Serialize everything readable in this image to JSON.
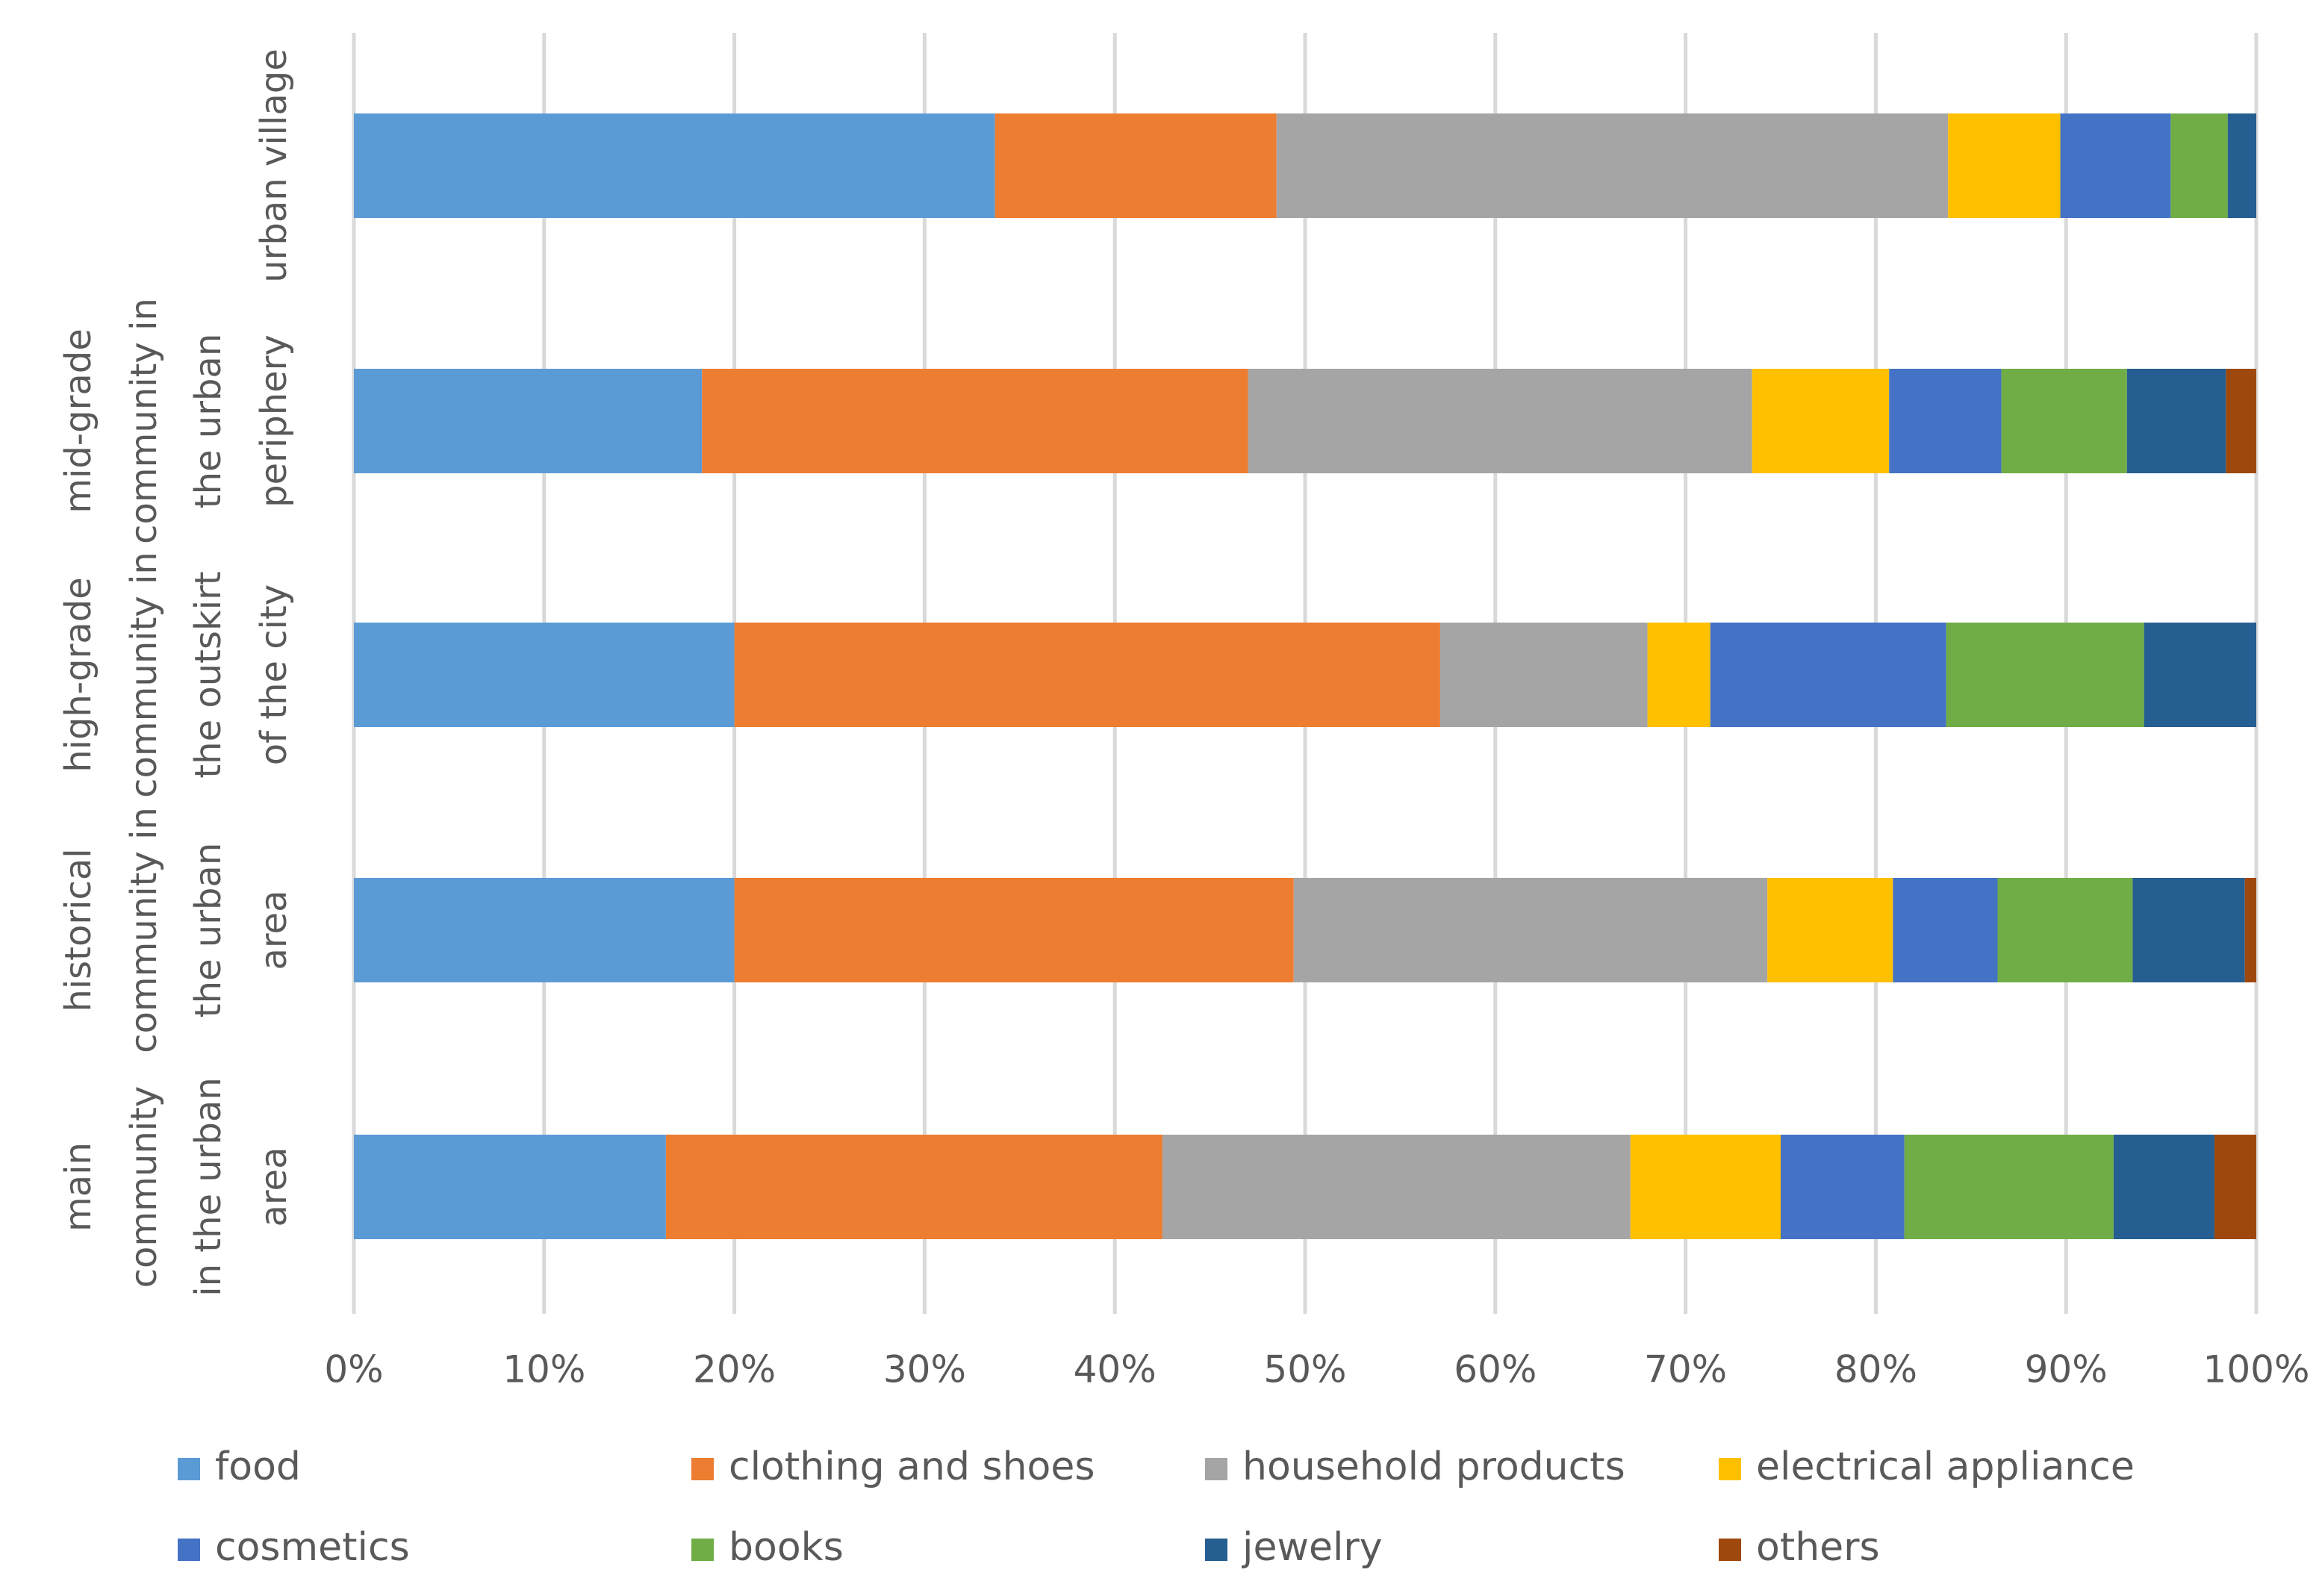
{
  "chart_data": {
    "type": "bar",
    "orientation": "horizontal",
    "stacked": "percent",
    "title": "",
    "xlabel": "",
    "ylabel": "",
    "xlim": [
      0,
      100
    ],
    "x_ticks": [
      "0%",
      "10%",
      "20%",
      "30%",
      "40%",
      "50%",
      "60%",
      "70%",
      "80%",
      "90%",
      "100%"
    ],
    "grid": true,
    "legend_position": "bottom",
    "categories": [
      {
        "id": "urban-village",
        "lines": [
          "urban village"
        ]
      },
      {
        "id": "mid-grade",
        "lines": [
          "mid-grade",
          "community in",
          "the urban",
          "periphery"
        ]
      },
      {
        "id": "high-grade",
        "lines": [
          "high-grade",
          "community in",
          "the outskirt",
          "of the city"
        ]
      },
      {
        "id": "historical",
        "lines": [
          "historical",
          "community in",
          "the urban",
          "area"
        ]
      },
      {
        "id": "main",
        "lines": [
          "main",
          "community",
          "in the urban",
          "area"
        ]
      }
    ],
    "series": [
      {
        "name": "food",
        "color": "#5B9BD5",
        "values": [
          33.7,
          18.3,
          20.0,
          20.0,
          16.4
        ]
      },
      {
        "name": "clothing and shoes",
        "color": "#ED7D31",
        "values": [
          14.8,
          28.7,
          37.1,
          29.4,
          26.1
        ]
      },
      {
        "name": "household products",
        "color": "#A5A5A5",
        "values": [
          35.3,
          26.5,
          10.9,
          24.9,
          24.6
        ]
      },
      {
        "name": "electrical appliance",
        "color": "#FFC000",
        "values": [
          5.9,
          7.2,
          3.3,
          6.6,
          7.9
        ]
      },
      {
        "name": "cosmetics",
        "color": "#4472C4",
        "values": [
          5.8,
          5.9,
          12.4,
          5.5,
          6.5
        ]
      },
      {
        "name": "books",
        "color": "#70AD47",
        "values": [
          3.0,
          6.6,
          10.4,
          7.1,
          11.0
        ]
      },
      {
        "name": "jewelry",
        "color": "#255E91",
        "values": [
          1.5,
          5.2,
          5.9,
          5.9,
          5.3
        ]
      },
      {
        "name": "others",
        "color": "#9E480E",
        "values": [
          0.0,
          1.6,
          0.0,
          0.6,
          2.2
        ]
      }
    ]
  }
}
